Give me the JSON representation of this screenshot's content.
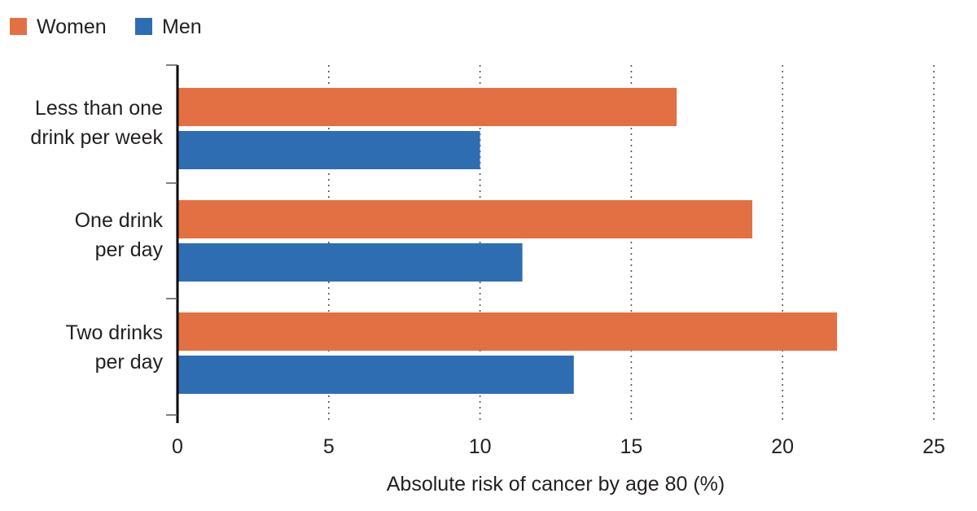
{
  "chart_data": {
    "type": "bar",
    "orientation": "horizontal",
    "title": "",
    "categories": [
      [
        "Less than one",
        "drink per week"
      ],
      [
        "One drink",
        "per day"
      ],
      [
        "Two drinks",
        "per day"
      ]
    ],
    "series": [
      {
        "name": "Women",
        "color": "#e37043",
        "values": [
          16.5,
          19.0,
          21.8
        ]
      },
      {
        "name": "Men",
        "color": "#2f6db3",
        "values": [
          10.0,
          11.4,
          13.1
        ]
      }
    ],
    "xlabel": "Absolute risk of cancer by age 80 (%)",
    "ylabel": "",
    "xlim": [
      0,
      25
    ],
    "xticks": [
      0,
      5,
      10,
      15,
      20,
      25
    ],
    "grid": true,
    "legend_position": "top-left"
  }
}
